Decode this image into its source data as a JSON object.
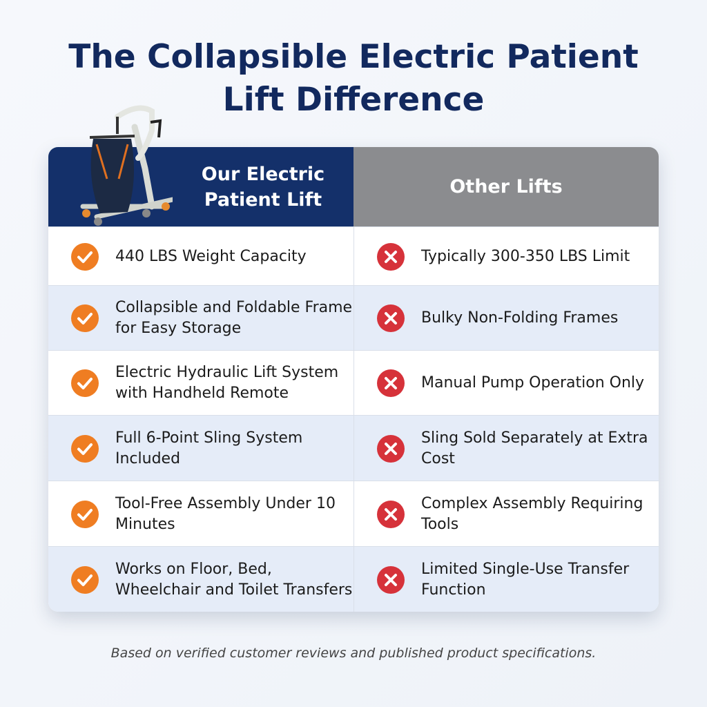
{
  "title": [
    "The Collapsible Electric Patient",
    "Lift Difference"
  ],
  "table": {
    "headers": [
      "Our Electric Patient Lift",
      "Other Lifts"
    ],
    "rows": [
      [
        "440 LBS Weight Capacity",
        "Typically 300-350 LBS Limit"
      ],
      [
        "Collapsible and Foldable Frame for Easy Storage",
        "Bulky Non-Folding Frames"
      ],
      [
        "Electric Hydraulic Lift System with Handheld Remote",
        "Manual Pump Operation Only"
      ],
      [
        "Full 6-Point Sling System Included",
        "Sling Sold Separately at Extra Cost"
      ],
      [
        "Tool-Free Assembly Under 10 Minutes",
        "Complex Assembly Requiring Tools"
      ],
      [
        "Works on Floor, Bed, Wheelchair and Toilet Transfers",
        "Limited Single-Use Transfer Function"
      ]
    ]
  },
  "footer": "Based on verified customer reviews and published product specifications."
}
